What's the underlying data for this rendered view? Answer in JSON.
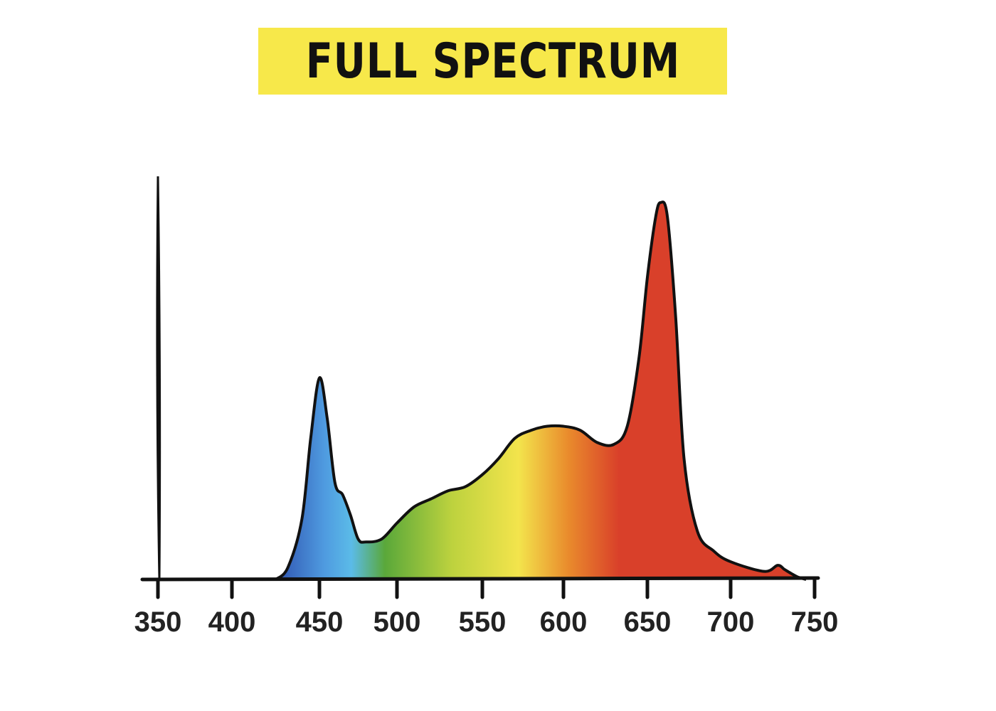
{
  "chart_data": {
    "type": "area",
    "title": "FULL SPECTRUM",
    "xlabel": "",
    "ylabel": "",
    "x_ticks": [
      350,
      400,
      450,
      500,
      550,
      600,
      650,
      700,
      750
    ],
    "xlim": [
      350,
      750
    ],
    "ylim": [
      0,
      1
    ],
    "grid": false,
    "fill": "spectral gradient (blue to red by wavelength)",
    "colors": {
      "blue": "#3a6fc4",
      "light_blue": "#5bbbe8",
      "green": "#5aa83a",
      "yellow": "#f3e44c",
      "orange": "#e98a2c",
      "red": "#d9402a",
      "title_bg": "#f7e84a",
      "outline": "#111111"
    },
    "series": [
      {
        "x": [
          425,
          432,
          440,
          445,
          450,
          455,
          460,
          465,
          470,
          475,
          480,
          490,
          500,
          510,
          520,
          530,
          540,
          550,
          560,
          570,
          580,
          590,
          600,
          610,
          620,
          630,
          638,
          645,
          650,
          655,
          658,
          662,
          667,
          672,
          680,
          690,
          700,
          720,
          728,
          732,
          736,
          740,
          745
        ],
        "y": [
          0,
          0.03,
          0.15,
          0.35,
          0.5,
          0.4,
          0.24,
          0.21,
          0.16,
          0.1,
          0.093,
          0.1,
          0.14,
          0.18,
          0.2,
          0.22,
          0.23,
          0.26,
          0.3,
          0.35,
          0.37,
          0.38,
          0.38,
          0.37,
          0.34,
          0.335,
          0.38,
          0.55,
          0.75,
          0.9,
          0.935,
          0.9,
          0.65,
          0.3,
          0.12,
          0.07,
          0.044,
          0.02,
          0.035,
          0.025,
          0.015,
          0.006,
          0
        ]
      }
    ]
  }
}
